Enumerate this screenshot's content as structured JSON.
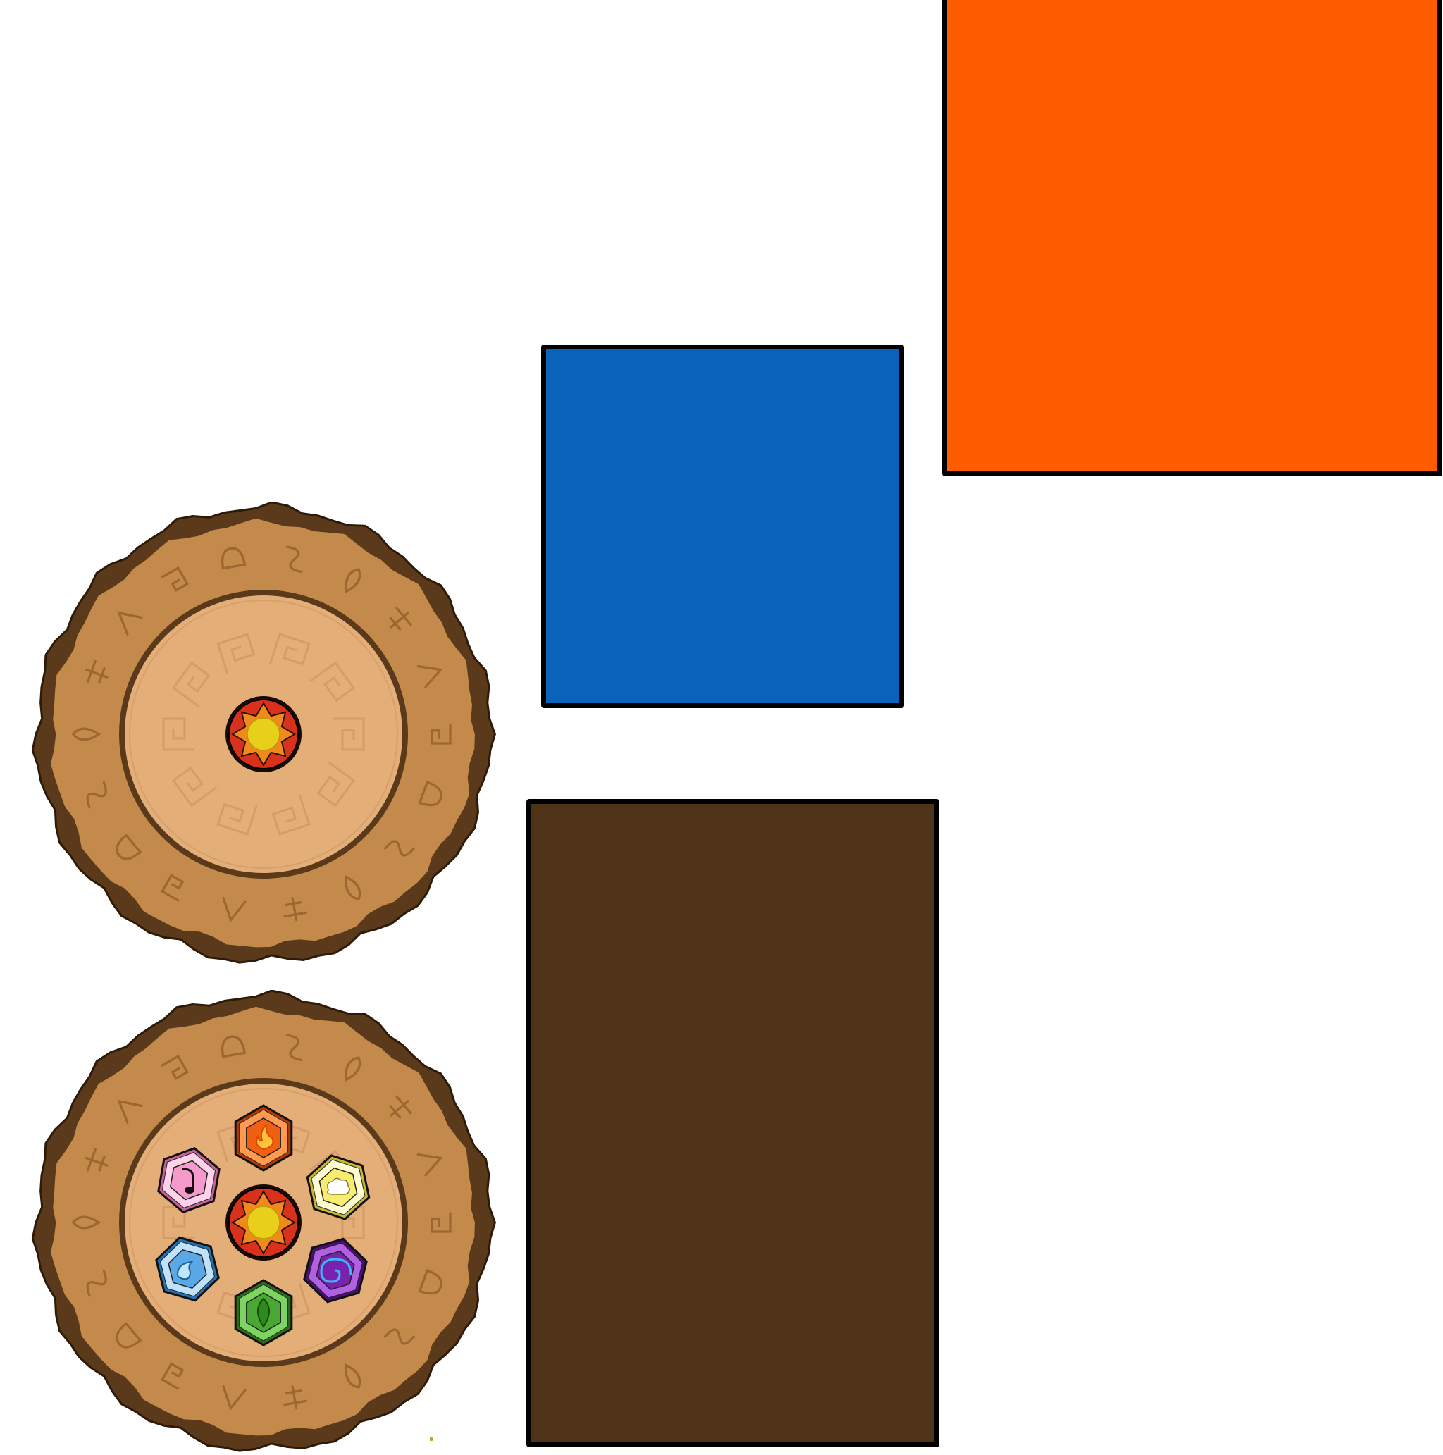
{
  "swatches": {
    "orange": "#FF5C00",
    "blue": "#0A62BA",
    "brown": "#4F3318",
    "outline": "#000000"
  },
  "board_colors": {
    "bark": "#5A3A1A",
    "outer_ring": "#C48A4C",
    "inner_disc": "#E4AE78",
    "engraving": "#9E6630"
  },
  "center_emblem": {
    "icon": "sun-emblem-icon",
    "fill": "#E8D01A",
    "ring": "#D9321C"
  },
  "gems": [
    {
      "name": "fire",
      "icon": "flame-icon",
      "color": "#F06010",
      "dark": "#B33A05",
      "light": "#FF9A50"
    },
    {
      "name": "light",
      "icon": "sheep-icon",
      "color": "#F7EE70",
      "dark": "#C9B830",
      "light": "#FFFBD0"
    },
    {
      "name": "shadow",
      "icon": "spiral-icon",
      "color": "#7A22B0",
      "dark": "#4A0F75",
      "light": "#B060E0"
    },
    {
      "name": "earth",
      "icon": "leaf-icon",
      "color": "#49A832",
      "dark": "#2D6E1C",
      "light": "#7ED460"
    },
    {
      "name": "water",
      "icon": "droplet-icon",
      "color": "#5AA8E6",
      "dark": "#2670B0",
      "light": "#BFE2FA"
    },
    {
      "name": "music",
      "icon": "note-icon",
      "color": "#F59ACB",
      "dark": "#C8609A",
      "light": "#FFD3EA"
    }
  ]
}
